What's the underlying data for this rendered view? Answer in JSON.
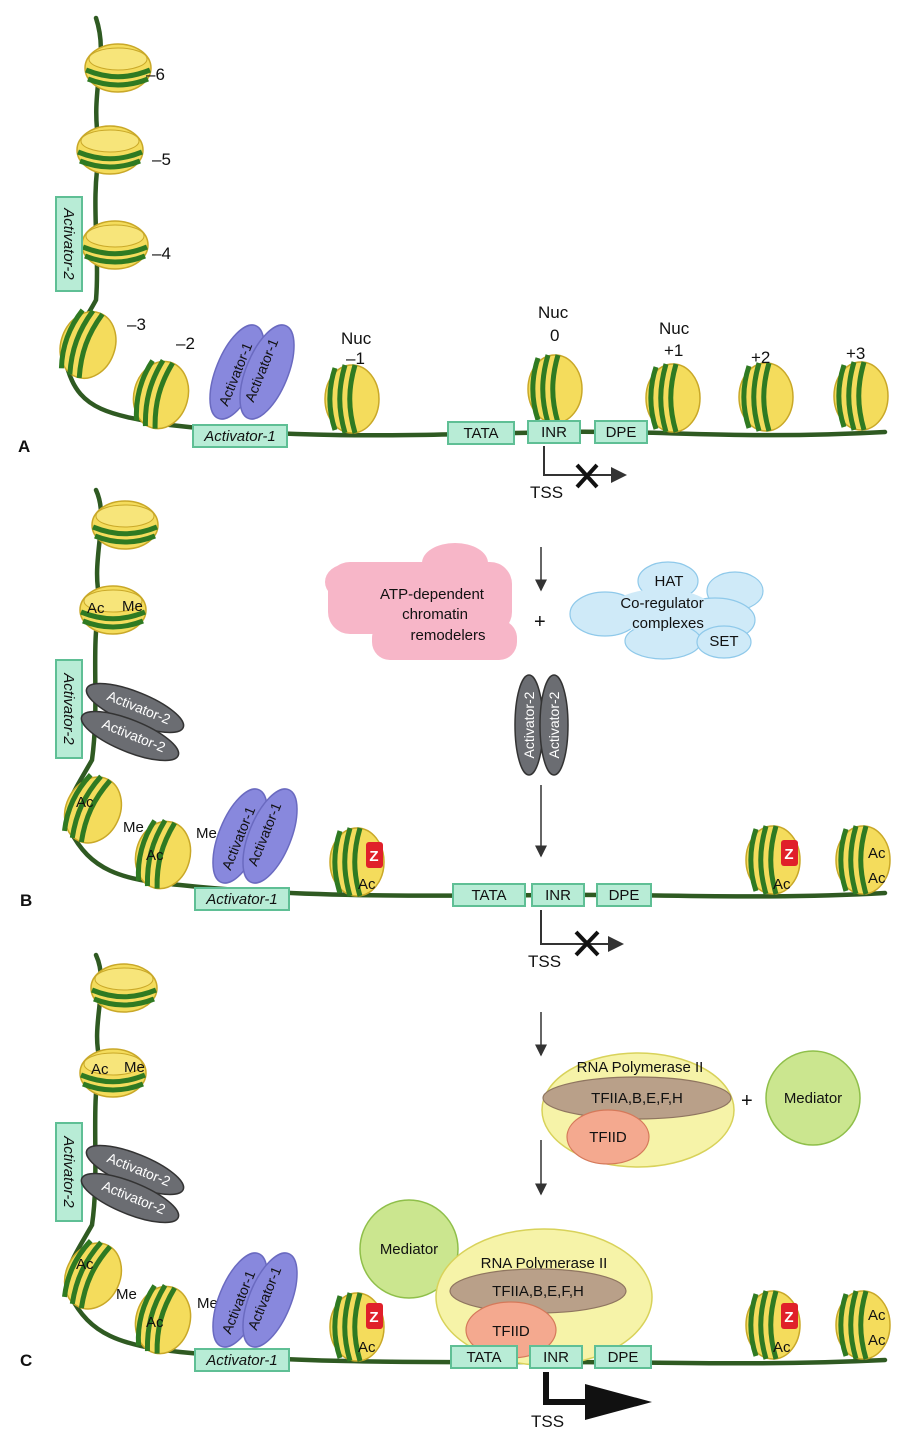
{
  "panels": {
    "a": "A",
    "b": "B",
    "c": "C"
  },
  "elements": {
    "tata": "TATA",
    "inr": "INR",
    "dpe": "DPE",
    "tss": "TSS",
    "activator1": "Activator-1",
    "activator2": "Activator-2",
    "nuc": "Nuc",
    "acetyl": "Ac",
    "methyl": "Me",
    "z": "Z",
    "plus": "+"
  },
  "nucleosome_labels": {
    "m6": "–6",
    "m5": "–5",
    "m4": "–4",
    "m3": "–3",
    "m2": "–2",
    "m1": "–1",
    "zero": "0",
    "p1": "+1",
    "p2": "+2",
    "p3": "+3"
  },
  "complexes": {
    "remodeler_line1": "ATP-dependent",
    "remodeler_line2": "chromatin",
    "remodeler_line3": "remodelers",
    "hat": "HAT",
    "coreg_line1": "Co-regulator",
    "coreg_line2": "complexes",
    "set": "SET",
    "rnapol": "RNA Polymerase II",
    "tfii": "TFIIA,B,E,F,H",
    "tfiid": "TFIID",
    "mediator": "Mediator"
  },
  "colors": {
    "dna": "#2f5a22",
    "nucleosome": "#f4dc5c",
    "activator1": "#8888dd",
    "activator2": "#6b6d72",
    "box": "#b8ecd6",
    "remodeler": "#f7b6c8",
    "coregulator": "#cfeaf8",
    "rnapol": "#f6f3a8",
    "tfii": "#b9a089",
    "tfiid": "#f4a98f",
    "mediator": "#cbe68f",
    "z_mark": "#e0202a"
  }
}
